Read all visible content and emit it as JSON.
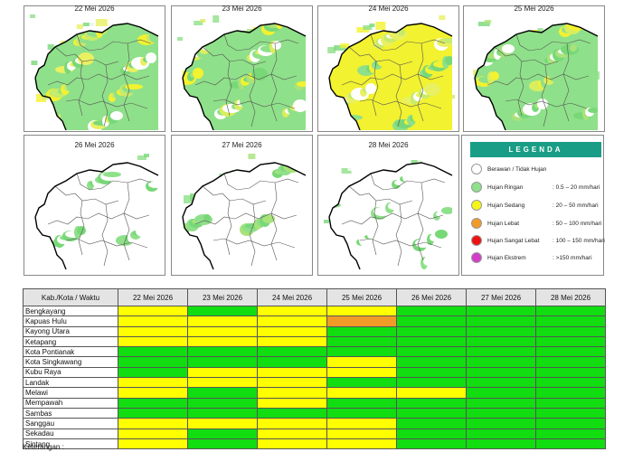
{
  "maps": [
    {
      "date": "22 Mei 2026",
      "colors": [
        "#8fe08a",
        "#e9f062",
        "#f2f230",
        "#78d878",
        "#c7eb6a",
        "#ffffff"
      ]
    },
    {
      "date": "23 Mei 2026",
      "colors": [
        "#8fe08a",
        "#78d878",
        "#d9ee5e",
        "#a8e27a",
        "#ffffff",
        "#f2f230"
      ]
    },
    {
      "date": "24 Mei 2026",
      "colors": [
        "#f2f230",
        "#e9f062",
        "#8fe08a",
        "#c7eb6a",
        "#78d878",
        "#ffffff"
      ]
    },
    {
      "date": "25 Mei 2026",
      "colors": [
        "#8fe08a",
        "#78d878",
        "#d9ee5e",
        "#a8e27a",
        "#f2f230",
        "#ffffff"
      ]
    },
    {
      "date": "26 Mei 2026",
      "colors": [
        "#ffffff",
        "#ffffff",
        "#8fe08a",
        "#ffffff",
        "#78d878",
        "#ffffff"
      ]
    },
    {
      "date": "27 Mei 2026",
      "colors": [
        "#ffffff",
        "#8fe08a",
        "#ffffff",
        "#78d878",
        "#ffffff",
        "#a8e27a"
      ]
    },
    {
      "date": "28 Mei 2026",
      "colors": [
        "#ffffff",
        "#ffffff",
        "#8fe08a",
        "#ffffff",
        "#ffffff",
        "#78d878"
      ]
    }
  ],
  "legend": {
    "title": "LEGENDA",
    "items": [
      {
        "label": "Berawan / Tidak Hujan",
        "range": "",
        "color": "#ffffff"
      },
      {
        "label": "Hujan Ringan",
        "range": ": 0.5 – 20 mm/hari",
        "color": "#8fe08a"
      },
      {
        "label": "Hujan Sedang",
        "range": ": 20 – 50 mm/hari",
        "color": "#f5f51a"
      },
      {
        "label": "Hujan Lebat",
        "range": ": 50 – 100 mm/hari",
        "color": "#f09a28"
      },
      {
        "label": "Hujan Sangat Lebat",
        "range": ": 100 – 150 mm/hari",
        "color": "#ee1111"
      },
      {
        "label": "Hujan Ekstrem",
        "range": ": >150 mm/hari",
        "color": "#d23ec8"
      }
    ]
  },
  "table": {
    "header": "Kab./Kota / Waktu",
    "dates": [
      "22 Mei 2026",
      "23 Mei 2026",
      "24 Mei 2026",
      "25 Mei 2026",
      "26 Mei 2026",
      "27 Mei 2026",
      "28 Mei 2026"
    ],
    "status_colors": {
      "R": "#11dd11",
      "S": "#ffff00",
      "L": "#f09a28",
      "B": "#ffffff"
    },
    "rows": [
      {
        "name": "Bengkayang",
        "cells": [
          "S",
          "R",
          "S",
          "S",
          "R",
          "R",
          "R"
        ]
      },
      {
        "name": "Kapuas Hulu",
        "cells": [
          "S",
          "S",
          "S",
          "L",
          "R",
          "R",
          "R"
        ]
      },
      {
        "name": "Kayong Utara",
        "cells": [
          "S",
          "S",
          "S",
          "R",
          "R",
          "R",
          "R"
        ]
      },
      {
        "name": "Ketapang",
        "cells": [
          "S",
          "S",
          "S",
          "R",
          "R",
          "R",
          "R"
        ]
      },
      {
        "name": "Kota Pontianak",
        "cells": [
          "R",
          "R",
          "R",
          "R",
          "R",
          "R",
          "R"
        ]
      },
      {
        "name": "Kota Singkawang",
        "cells": [
          "R",
          "R",
          "R",
          "S",
          "R",
          "R",
          "R"
        ]
      },
      {
        "name": "Kubu Raya",
        "cells": [
          "R",
          "S",
          "S",
          "S",
          "R",
          "R",
          "R"
        ]
      },
      {
        "name": "Landak",
        "cells": [
          "S",
          "S",
          "S",
          "R",
          "R",
          "R",
          "R"
        ]
      },
      {
        "name": "Melawi",
        "cells": [
          "S",
          "R",
          "S",
          "S",
          "S",
          "R",
          "R"
        ]
      },
      {
        "name": "Mempawah",
        "cells": [
          "R",
          "R",
          "S",
          "R",
          "R",
          "R",
          "R"
        ]
      },
      {
        "name": "Sambas",
        "cells": [
          "R",
          "R",
          "R",
          "R",
          "R",
          "R",
          "R"
        ]
      },
      {
        "name": "Sanggau",
        "cells": [
          "S",
          "S",
          "S",
          "S",
          "R",
          "R",
          "R"
        ]
      },
      {
        "name": "Sekadau",
        "cells": [
          "S",
          "R",
          "S",
          "S",
          "R",
          "R",
          "R"
        ]
      },
      {
        "name": "Sintang",
        "cells": [
          "S",
          "R",
          "S",
          "S",
          "R",
          "R",
          "R"
        ]
      }
    ]
  },
  "footer": "Keterangan :"
}
